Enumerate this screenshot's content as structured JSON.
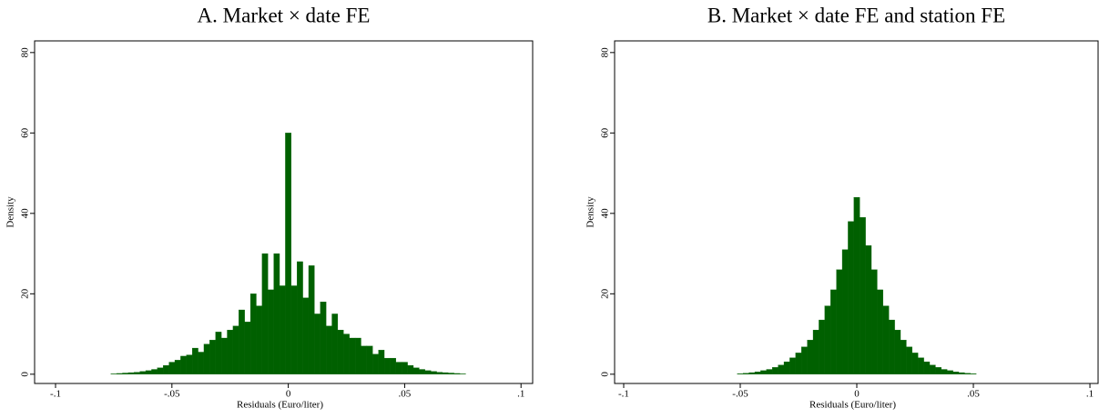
{
  "chart_data": [
    {
      "type": "histogram",
      "title": "A. Market × date FE",
      "x_label": "Residuals (Euro/liter)",
      "y_label": "Density",
      "color": "#006000",
      "bins": [
        -0.07625,
        -0.07375,
        -0.07125,
        -0.06875,
        -0.06625,
        -0.06375,
        -0.06125,
        -0.05875,
        -0.05625,
        -0.05375,
        -0.05125,
        -0.04875,
        -0.04625,
        -0.04375,
        -0.04125,
        -0.03875,
        -0.03625,
        -0.03375,
        -0.03125,
        -0.02875,
        -0.02625,
        -0.02375,
        -0.02125,
        -0.01875,
        -0.01625,
        -0.01375,
        -0.01125,
        -0.00875,
        -0.00625,
        -0.00375,
        -0.00125,
        0.00125,
        0.00375,
        0.00625,
        0.00875,
        0.01125,
        0.01375,
        0.01625,
        0.01875,
        0.02125,
        0.02375,
        0.02625,
        0.02875,
        0.03125,
        0.03375,
        0.03625,
        0.03875,
        0.04125,
        0.04375,
        0.04625,
        0.04875,
        0.05125,
        0.05375,
        0.05625,
        0.05875,
        0.06125,
        0.06375,
        0.06625,
        0.06875,
        0.07125,
        0.07375,
        0.07625
      ],
      "values": [
        0.1,
        0.2,
        0.3,
        0.4,
        0.5,
        0.7,
        0.9,
        1.2,
        1.6,
        2.2,
        3.0,
        3.5,
        4.5,
        4.8,
        6.5,
        5.5,
        7.5,
        8.5,
        10.5,
        9,
        11,
        12,
        16,
        13,
        20,
        17,
        30,
        21,
        30,
        22,
        60,
        22,
        28,
        19,
        27,
        15,
        18,
        12,
        15,
        11,
        10,
        9,
        9,
        7,
        7,
        5,
        6,
        4,
        4,
        3,
        3,
        2.2,
        1.6,
        1.2,
        0.9,
        0.7,
        0.5,
        0.4,
        0.3,
        0.2,
        0.1
      ],
      "xlim": [
        -0.109,
        0.105
      ],
      "ylim": [
        -2.3,
        82.9
      ],
      "xticks": [
        {
          "value": -0.1,
          "label": "-.1"
        },
        {
          "value": -0.05,
          "label": "-.05"
        },
        0,
        {
          "value": 0.05,
          "label": ".05"
        },
        {
          "value": 0.1,
          "label": ".1"
        }
      ],
      "yticks": [
        0,
        20,
        40,
        60,
        80
      ]
    },
    {
      "type": "histogram",
      "title": "B. Market × date FE and station FE",
      "x_label": "Residuals (Euro/liter)",
      "y_label": "Density",
      "color": "#006000",
      "bins": [
        -0.07625,
        -0.07375,
        -0.07125,
        -0.06875,
        -0.06625,
        -0.06375,
        -0.06125,
        -0.05875,
        -0.05625,
        -0.05375,
        -0.05125,
        -0.04875,
        -0.04625,
        -0.04375,
        -0.04125,
        -0.03875,
        -0.03625,
        -0.03375,
        -0.03125,
        -0.02875,
        -0.02625,
        -0.02375,
        -0.02125,
        -0.01875,
        -0.01625,
        -0.01375,
        -0.01125,
        -0.00875,
        -0.00625,
        -0.00375,
        -0.00125,
        0.00125,
        0.00375,
        0.00625,
        0.00875,
        0.01125,
        0.01375,
        0.01625,
        0.01875,
        0.02125,
        0.02375,
        0.02625,
        0.02875,
        0.03125,
        0.03375,
        0.03625,
        0.03875,
        0.04125,
        0.04375,
        0.04625,
        0.04875,
        0.05125,
        0.05375,
        0.05625,
        0.05875,
        0.06125,
        0.06375,
        0.06625,
        0.06875,
        0.07125,
        0.07375,
        0.07625
      ],
      "values": [
        0,
        0,
        0,
        0,
        0,
        0,
        0,
        0,
        0,
        0,
        0.15,
        0.25,
        0.4,
        0.6,
        0.9,
        1.2,
        1.7,
        2.3,
        3.1,
        4.1,
        5.3,
        6.8,
        8.5,
        11,
        13.5,
        17,
        21,
        26,
        31,
        38,
        44,
        39,
        32,
        26,
        21,
        17,
        13.5,
        11,
        8.5,
        6.8,
        5.3,
        4.1,
        3.1,
        2.3,
        1.7,
        1.2,
        0.9,
        0.6,
        0.4,
        0.25,
        0.15,
        0,
        0,
        0,
        0,
        0,
        0,
        0,
        0,
        0,
        0
      ],
      "xlim": [
        -0.1039,
        0.1035
      ],
      "ylim": [
        -2.3,
        82.9
      ],
      "xticks": [
        {
          "value": -0.1,
          "label": "-.1"
        },
        {
          "value": -0.05,
          "label": "-.05"
        },
        0,
        {
          "value": 0.05,
          "label": ".05"
        },
        {
          "value": 0.1,
          "label": ".1"
        }
      ],
      "yticks": [
        0,
        20,
        40,
        60,
        80
      ]
    }
  ]
}
